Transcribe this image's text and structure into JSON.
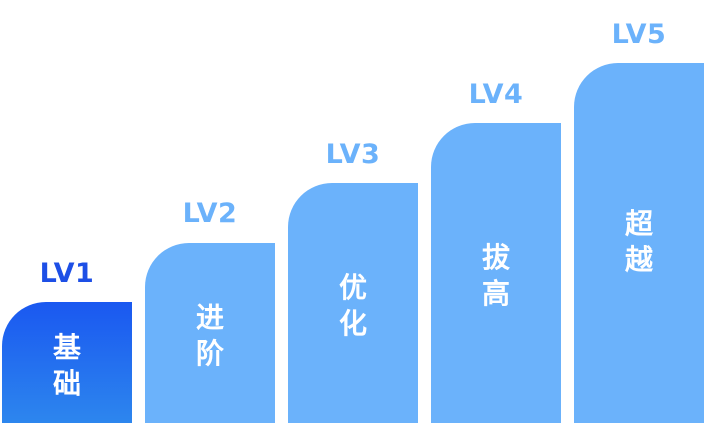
{
  "colors": {
    "label_active": "#1d4fe6",
    "label": "#6bb2fb",
    "bar": "#6bb2fb",
    "bar_active_top": "#1a58f0",
    "bar_active_bottom": "#2d86ee",
    "bar_text": "#ffffff"
  },
  "levels": [
    {
      "label": "LV1",
      "char1": "基",
      "char2": "础",
      "active": true
    },
    {
      "label": "LV2",
      "char1": "进",
      "char2": "阶",
      "active": false
    },
    {
      "label": "LV3",
      "char1": "优",
      "char2": "化",
      "active": false
    },
    {
      "label": "LV4",
      "char1": "拔",
      "char2": "高",
      "active": false
    },
    {
      "label": "LV5",
      "char1": "超",
      "char2": "越",
      "active": false
    }
  ]
}
